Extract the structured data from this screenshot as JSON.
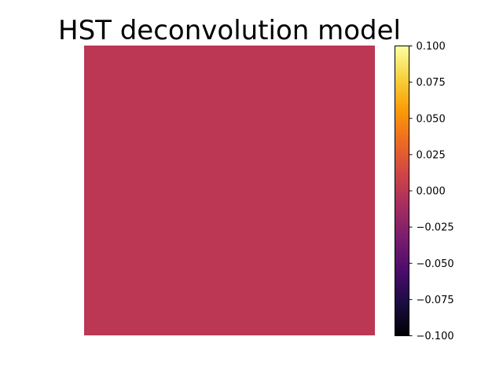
{
  "chart_data": {
    "type": "heatmap",
    "title": "HST deconvolution model",
    "xlabel": "",
    "ylabel": "",
    "axes_visible": false,
    "colormap": "inferno",
    "grid": false,
    "image": {
      "rows": 1,
      "cols": 1,
      "values": [
        [
          0.0
        ]
      ]
    },
    "colorbar": {
      "vmin": -0.1,
      "vmax": 0.1,
      "ticks": [
        -0.1,
        -0.075,
        -0.05,
        -0.025,
        0.0,
        0.025,
        0.05,
        0.075,
        0.1
      ],
      "tick_labels": [
        "−0.100",
        "−0.075",
        "−0.050",
        "−0.025",
        "0.000",
        "0.025",
        "0.050",
        "0.075",
        "0.100"
      ]
    },
    "colors": {
      "image_fill": "#bb3754",
      "inferno_stops": [
        "#000004",
        "#1b0c41",
        "#4a0c6b",
        "#781c6d",
        "#a52c60",
        "#cf4446",
        "#ed6925",
        "#fb9b06",
        "#f7d13d",
        "#fcffa4"
      ]
    }
  }
}
